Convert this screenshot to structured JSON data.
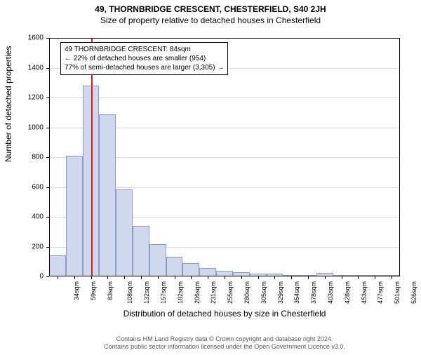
{
  "titles": {
    "main": "49, THORNBRIDGE CRESCENT, CHESTERFIELD, S40 2JH",
    "sub": "Size of property relative to detached houses in Chesterfield"
  },
  "chart": {
    "type": "histogram",
    "ylabel": "Number of detached properties",
    "xlabel": "Distribution of detached houses by size in Chesterfield",
    "ylim": [
      0,
      1600
    ],
    "ytick_step": 200,
    "yticks": [
      0,
      200,
      400,
      600,
      800,
      1000,
      1200,
      1400,
      1600
    ],
    "grid_color": "#d9d9d9",
    "bar_fill": "#cfd8ec",
    "bar_border": "#8a9bc4",
    "marker_color": "#d21f1f",
    "background_color": "#ffffff",
    "plot_border_color": "#000000",
    "bar_width_ratio": 1.0,
    "bars": [
      {
        "label": "34sqm",
        "value": 140
      },
      {
        "label": "59sqm",
        "value": 810
      },
      {
        "label": "83sqm",
        "value": 1280
      },
      {
        "label": "108sqm",
        "value": 1085
      },
      {
        "label": "132sqm",
        "value": 585
      },
      {
        "label": "157sqm",
        "value": 340
      },
      {
        "label": "182sqm",
        "value": 215
      },
      {
        "label": "206sqm",
        "value": 130
      },
      {
        "label": "231sqm",
        "value": 90
      },
      {
        "label": "255sqm",
        "value": 58
      },
      {
        "label": "280sqm",
        "value": 40
      },
      {
        "label": "305sqm",
        "value": 28
      },
      {
        "label": "329sqm",
        "value": 20
      },
      {
        "label": "354sqm",
        "value": 18
      },
      {
        "label": "378sqm",
        "value": 10
      },
      {
        "label": "403sqm",
        "value": 8
      },
      {
        "label": "428sqm",
        "value": 22
      },
      {
        "label": "453sqm",
        "value": 4
      },
      {
        "label": "477sqm",
        "value": 3
      },
      {
        "label": "501sqm",
        "value": 3
      },
      {
        "label": "526sqm",
        "value": 2
      }
    ],
    "marker": {
      "x_value": 84,
      "x_min": 34,
      "x_step": 24.6
    },
    "info_box": {
      "line1": "49 THORNBRIDGE CRESCENT: 84sqm",
      "line2": "← 22% of detached houses are smaller (954)",
      "line3": "77% of semi-detached houses are larger (3,305) →"
    }
  },
  "footer": {
    "line1": "Contains HM Land Registry data © Crown copyright and database right 2024.",
    "line2": "Contains public sector information licensed under the Open Government Licence v3.0."
  }
}
